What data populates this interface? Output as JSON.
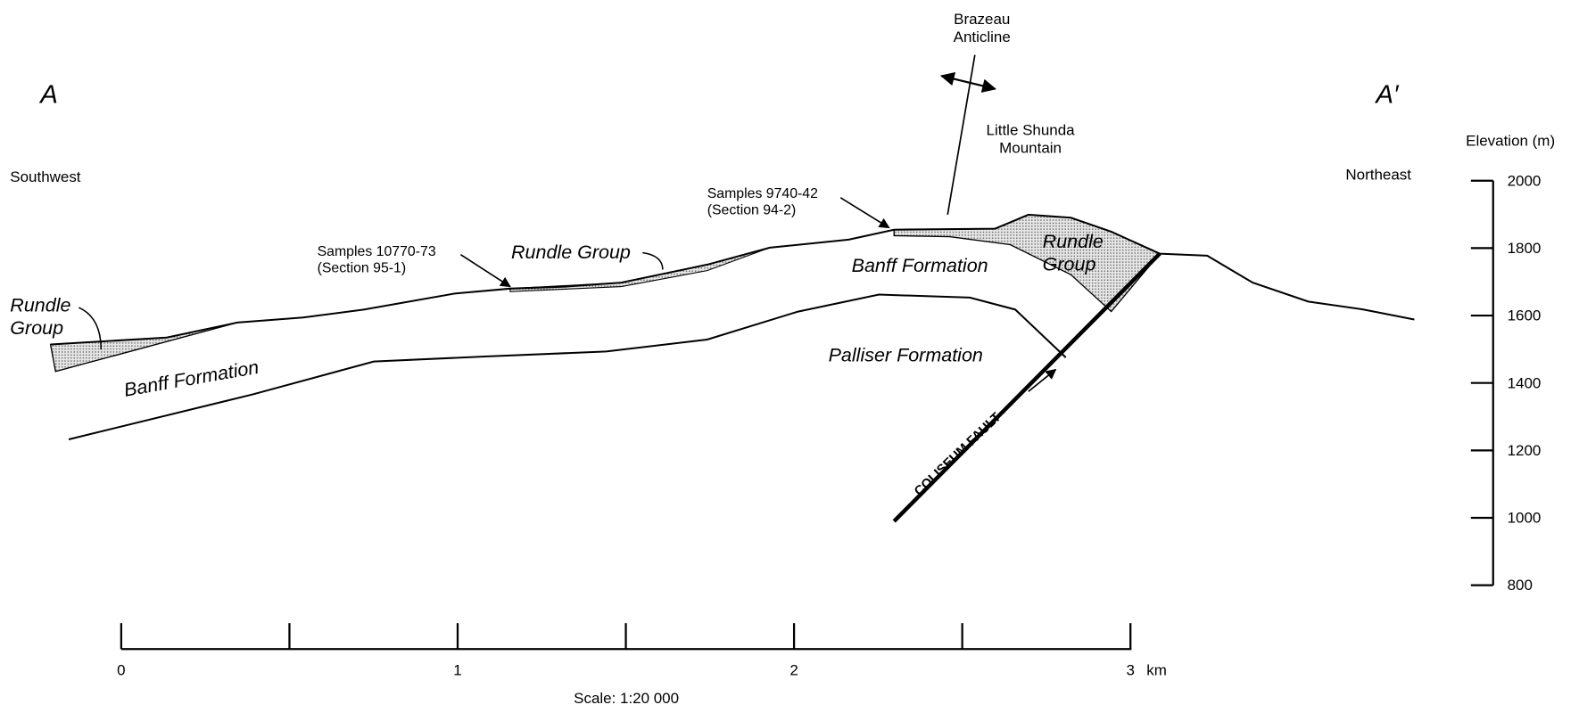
{
  "section": {
    "left_end": "A",
    "right_end": "A′",
    "left_direction": "Southwest",
    "right_direction": "Northeast"
  },
  "labels": {
    "brazeau": [
      "Brazeau",
      "Anticline"
    ],
    "little_shunda": [
      "Little Shunda",
      "Mountain"
    ],
    "samples_94": [
      "Samples 9740-42",
      "(Section 94-2)"
    ],
    "samples_95": [
      "Samples 10770-73",
      "(Section 95-1)"
    ],
    "rundle_left": [
      "Rundle",
      "Group"
    ],
    "rundle_middle": "Rundle Group",
    "rundle_right": [
      "Rundle",
      "Group"
    ],
    "banff_left": "Banff Formation",
    "banff_right": "Banff Formation",
    "palliser": "Palliser Formation",
    "fault": "COLISEUM FAULT"
  },
  "elevation_axis": {
    "title": "Elevation (m)",
    "ticks": [
      2000,
      1800,
      1600,
      1400,
      1200,
      1000,
      800
    ]
  },
  "scale_bar": {
    "ticks": [
      0,
      1,
      2,
      3
    ],
    "unit": "km",
    "scale": "Scale:  1:20 000"
  }
}
